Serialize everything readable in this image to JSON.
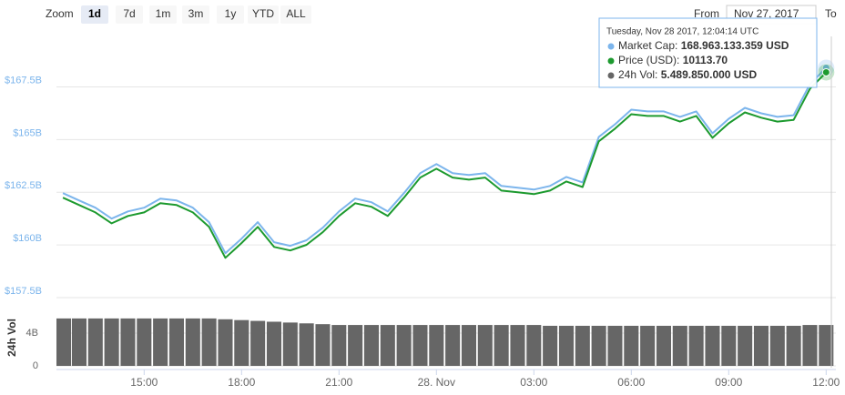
{
  "toolbar": {
    "zoom_label": "Zoom",
    "buttons": [
      "1d",
      "7d",
      "1m",
      "3m",
      "1y",
      "YTD",
      "ALL"
    ],
    "from_label": "From",
    "from_value": "Nov 27, 2017",
    "to_label": "To"
  },
  "tooltip": {
    "date": "Tuesday, Nov 28 2017, 12:04:14 UTC",
    "rows": [
      {
        "label": "Market Cap:",
        "value": "168.963.133.359 USD"
      },
      {
        "label": "Price (USD):",
        "value": "10113.70"
      },
      {
        "label": "24h Vol:",
        "value": "5.489.850.000 USD"
      }
    ]
  },
  "chart_data": [
    {
      "type": "line",
      "x": [
        12.5,
        13,
        13.5,
        14,
        14.5,
        15,
        15.5,
        16,
        16.5,
        17,
        17.5,
        18,
        18.5,
        19,
        19.5,
        20,
        20.5,
        21,
        21.5,
        22,
        22.5,
        23,
        23.5,
        24,
        24.5,
        25,
        25.5,
        26,
        26.5,
        27,
        27.5,
        28,
        28.5,
        29,
        29.5,
        30,
        30.5,
        31,
        31.5,
        32,
        32.5,
        33,
        33.5,
        34,
        34.5,
        35,
        35.5,
        36
      ],
      "xlim": [
        12.3,
        36.3
      ],
      "series": [
        {
          "color": "#7cb5ec",
          "values": [
            162.46,
            162.11,
            161.77,
            161.25,
            161.59,
            161.77,
            162.2,
            162.11,
            161.77,
            161.08,
            159.61,
            160.3,
            161.08,
            160.13,
            159.96,
            160.22,
            160.82,
            161.59,
            162.2,
            162.03,
            161.59,
            162.46,
            163.41,
            163.84,
            163.41,
            163.32,
            163.41,
            162.8,
            162.72,
            162.63,
            162.8,
            163.23,
            162.97,
            165.13,
            165.73,
            166.42,
            166.34,
            166.34,
            166.08,
            166.34,
            165.3,
            165.99,
            166.51,
            166.25,
            166.08,
            166.16,
            167.63,
            168.41
          ]
        },
        {
          "color": "#1d9a2f",
          "axis": "y2",
          "values": [
            9724,
            9703,
            9682,
            9651,
            9672,
            9682,
            9708,
            9703,
            9682,
            9641,
            9553,
            9595,
            9641,
            9584,
            9574,
            9590,
            9626,
            9672,
            9708,
            9698,
            9672,
            9724,
            9781,
            9806,
            9781,
            9775,
            9781,
            9744,
            9739,
            9734,
            9744,
            9770,
            9754,
            9884,
            9920,
            9961,
            9956,
            9956,
            9940,
            9956,
            9894,
            9935,
            9966,
            9951,
            9940,
            9945,
            10033,
            10080
          ]
        }
      ],
      "ylim": [
        157.5,
        169.9
      ],
      "yticks": [
        {
          "value": 157.5,
          "label": "$157.5B"
        },
        {
          "value": 160,
          "label": "$160B"
        },
        {
          "value": 162.5,
          "label": "$162.5B"
        },
        {
          "value": 165,
          "label": "$165B"
        },
        {
          "value": 167.5,
          "label": "$167.5B"
        }
      ],
      "y2lim": [
        9440,
        10182
      ],
      "grid": true
    },
    {
      "type": "bar",
      "ylabel": "24h Vol",
      "color": "#666666",
      "x": [
        12.5,
        13,
        13.5,
        14,
        14.5,
        15,
        15.5,
        16,
        16.5,
        17,
        17.5,
        18,
        18.5,
        19,
        19.5,
        20,
        20.5,
        21,
        21.5,
        22,
        22.5,
        23,
        23.5,
        24,
        24.5,
        25,
        25.5,
        26,
        26.5,
        27,
        27.5,
        28,
        28.5,
        29,
        29.5,
        30,
        30.5,
        31,
        31.5,
        32,
        32.5,
        33,
        33.5,
        34,
        34.5,
        35,
        35.5,
        36
      ],
      "values": [
        5.8,
        5.8,
        5.8,
        5.8,
        5.8,
        5.8,
        5.8,
        5.8,
        5.8,
        5.8,
        5.7,
        5.6,
        5.5,
        5.4,
        5.3,
        5.2,
        5.1,
        5.0,
        5.0,
        5.0,
        5.0,
        5.0,
        5.0,
        5.0,
        5.0,
        5.0,
        5.0,
        5.0,
        5.0,
        5.0,
        4.9,
        4.9,
        4.9,
        4.9,
        4.9,
        4.9,
        4.9,
        4.9,
        4.9,
        4.9,
        4.9,
        4.9,
        4.9,
        4.9,
        4.9,
        4.9,
        5.0,
        5.0
      ],
      "xlim": [
        12.3,
        36.3
      ],
      "xticks": [
        {
          "value": 15,
          "label": "15:00"
        },
        {
          "value": 18,
          "label": "18:00"
        },
        {
          "value": 21,
          "label": "21:00"
        },
        {
          "value": 24,
          "label": "28. Nov"
        },
        {
          "value": 27,
          "label": "03:00"
        },
        {
          "value": 30,
          "label": "06:00"
        },
        {
          "value": 33,
          "label": "09:00"
        },
        {
          "value": 36,
          "label": "12:00"
        }
      ],
      "ylim": [
        0,
        6.9
      ],
      "yticks": [
        0,
        {
          "value": 4,
          "label": "4B"
        }
      ],
      "grid": true
    }
  ]
}
